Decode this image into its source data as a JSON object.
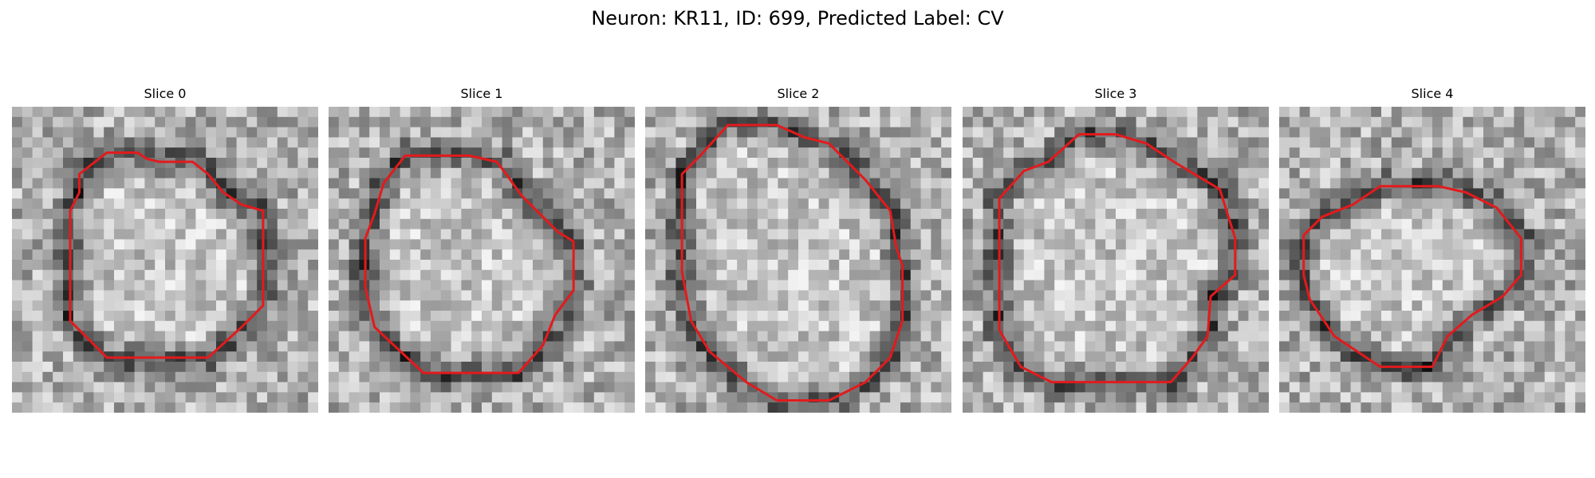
{
  "figure": {
    "title": "Neuron: KR11, ID: 699, Predicted Label: CV"
  },
  "outline_color": "#e31a1c",
  "panels": [
    {
      "title": "Slice 0",
      "description_hint": "grayscale microscopy crop, bright cell body with dark ring",
      "contrast": 1.0,
      "contour": [
        [
          0.31,
          0.15
        ],
        [
          0.41,
          0.15
        ],
        [
          0.44,
          0.17
        ],
        [
          0.48,
          0.18
        ],
        [
          0.59,
          0.18
        ],
        [
          0.64,
          0.22
        ],
        [
          0.69,
          0.28
        ],
        [
          0.75,
          0.32
        ],
        [
          0.82,
          0.34
        ],
        [
          0.82,
          0.65
        ],
        [
          0.75,
          0.72
        ],
        [
          0.64,
          0.82
        ],
        [
          0.31,
          0.82
        ],
        [
          0.19,
          0.7
        ],
        [
          0.19,
          0.34
        ],
        [
          0.22,
          0.28
        ],
        [
          0.22,
          0.22
        ]
      ]
    },
    {
      "title": "Slice 1",
      "contrast": 1.0,
      "contour": [
        [
          0.25,
          0.16
        ],
        [
          0.46,
          0.16
        ],
        [
          0.55,
          0.18
        ],
        [
          0.58,
          0.22
        ],
        [
          0.63,
          0.29
        ],
        [
          0.68,
          0.34
        ],
        [
          0.75,
          0.41
        ],
        [
          0.8,
          0.44
        ],
        [
          0.8,
          0.6
        ],
        [
          0.74,
          0.68
        ],
        [
          0.7,
          0.78
        ],
        [
          0.62,
          0.87
        ],
        [
          0.31,
          0.87
        ],
        [
          0.15,
          0.72
        ],
        [
          0.12,
          0.59
        ],
        [
          0.12,
          0.43
        ],
        [
          0.15,
          0.35
        ],
        [
          0.18,
          0.25
        ]
      ]
    },
    {
      "title": "Slice 2",
      "contrast": 1.0,
      "contour": [
        [
          0.27,
          0.06
        ],
        [
          0.43,
          0.06
        ],
        [
          0.52,
          0.1
        ],
        [
          0.6,
          0.12
        ],
        [
          0.72,
          0.24
        ],
        [
          0.8,
          0.34
        ],
        [
          0.82,
          0.46
        ],
        [
          0.84,
          0.52
        ],
        [
          0.84,
          0.7
        ],
        [
          0.8,
          0.82
        ],
        [
          0.72,
          0.9
        ],
        [
          0.6,
          0.96
        ],
        [
          0.43,
          0.96
        ],
        [
          0.33,
          0.9
        ],
        [
          0.21,
          0.8
        ],
        [
          0.15,
          0.7
        ],
        [
          0.12,
          0.54
        ],
        [
          0.12,
          0.22
        ],
        [
          0.18,
          0.16
        ]
      ]
    },
    {
      "title": "Slice 3",
      "contrast": 1.0,
      "contour": [
        [
          0.38,
          0.09
        ],
        [
          0.5,
          0.09
        ],
        [
          0.6,
          0.12
        ],
        [
          0.69,
          0.18
        ],
        [
          0.84,
          0.27
        ],
        [
          0.89,
          0.43
        ],
        [
          0.89,
          0.55
        ],
        [
          0.81,
          0.62
        ],
        [
          0.8,
          0.75
        ],
        [
          0.75,
          0.82
        ],
        [
          0.68,
          0.9
        ],
        [
          0.29,
          0.9
        ],
        [
          0.19,
          0.85
        ],
        [
          0.12,
          0.73
        ],
        [
          0.12,
          0.3
        ],
        [
          0.2,
          0.21
        ],
        [
          0.28,
          0.18
        ]
      ]
    },
    {
      "title": "Slice 4",
      "contrast": 1.0,
      "contour": [
        [
          0.33,
          0.26
        ],
        [
          0.52,
          0.26
        ],
        [
          0.61,
          0.28
        ],
        [
          0.71,
          0.33
        ],
        [
          0.79,
          0.43
        ],
        [
          0.79,
          0.55
        ],
        [
          0.73,
          0.62
        ],
        [
          0.63,
          0.68
        ],
        [
          0.55,
          0.75
        ],
        [
          0.5,
          0.85
        ],
        [
          0.33,
          0.85
        ],
        [
          0.18,
          0.75
        ],
        [
          0.1,
          0.63
        ],
        [
          0.08,
          0.55
        ],
        [
          0.08,
          0.42
        ],
        [
          0.14,
          0.36
        ],
        [
          0.24,
          0.32
        ]
      ]
    }
  ]
}
